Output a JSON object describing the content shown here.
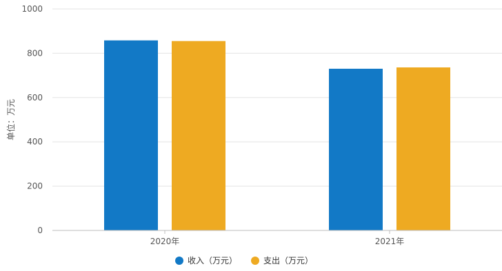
{
  "chart_data": {
    "type": "bar",
    "categories": [
      "2020年",
      "2021年"
    ],
    "series": [
      {
        "name": "收入（万元）",
        "values": [
          858,
          730
        ],
        "color": "#1279c6"
      },
      {
        "name": "支出（万元）",
        "values": [
          855,
          736
        ],
        "color": "#eeaa22"
      }
    ],
    "ylabel": "单位：万元",
    "ylim": [
      0,
      1000
    ],
    "yticks": [
      0,
      200,
      400,
      600,
      800,
      1000
    ],
    "grid": true,
    "legend_position": "bottom"
  }
}
